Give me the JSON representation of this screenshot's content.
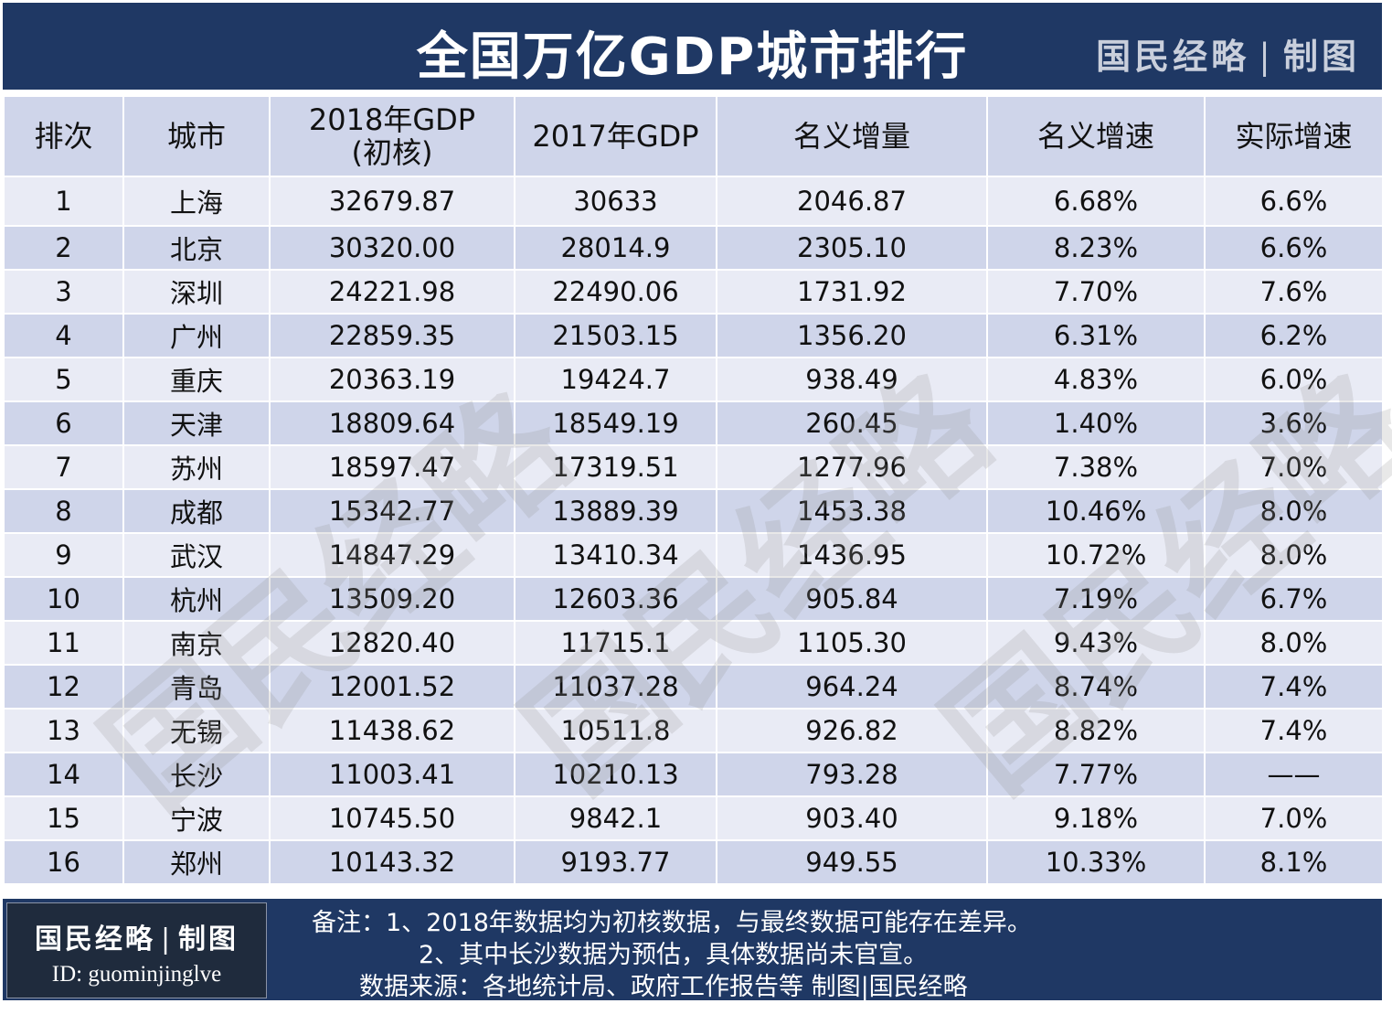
{
  "header": {
    "title": "全国万亿GDP城市排行",
    "brand": "国民经略",
    "brand_sep": "|",
    "brand_suffix": "制图"
  },
  "watermark_text": "国民经略",
  "chart_data": {
    "type": "table",
    "columns": [
      "排次",
      "城市",
      "2018年GDP\n(初核)",
      "2017年GDP",
      "名义增量",
      "名义增速",
      "实际增速"
    ],
    "rows": [
      [
        "1",
        "上海",
        "32679.87",
        "30633",
        "2046.87",
        "6.68%",
        "6.6%"
      ],
      [
        "2",
        "北京",
        "30320.00",
        "28014.9",
        "2305.10",
        "8.23%",
        "6.6%"
      ],
      [
        "3",
        "深圳",
        "24221.98",
        "22490.06",
        "1731.92",
        "7.70%",
        "7.6%"
      ],
      [
        "4",
        "广州",
        "22859.35",
        "21503.15",
        "1356.20",
        "6.31%",
        "6.2%"
      ],
      [
        "5",
        "重庆",
        "20363.19",
        "19424.7",
        "938.49",
        "4.83%",
        "6.0%"
      ],
      [
        "6",
        "天津",
        "18809.64",
        "18549.19",
        "260.45",
        "1.40%",
        "3.6%"
      ],
      [
        "7",
        "苏州",
        "18597.47",
        "17319.51",
        "1277.96",
        "7.38%",
        "7.0%"
      ],
      [
        "8",
        "成都",
        "15342.77",
        "13889.39",
        "1453.38",
        "10.46%",
        "8.0%"
      ],
      [
        "9",
        "武汉",
        "14847.29",
        "13410.34",
        "1436.95",
        "10.72%",
        "8.0%"
      ],
      [
        "10",
        "杭州",
        "13509.20",
        "12603.36",
        "905.84",
        "7.19%",
        "6.7%"
      ],
      [
        "11",
        "南京",
        "12820.40",
        "11715.1",
        "1105.30",
        "9.43%",
        "8.0%"
      ],
      [
        "12",
        "青岛",
        "12001.52",
        "11037.28",
        "964.24",
        "8.74%",
        "7.4%"
      ],
      [
        "13",
        "无锡",
        "11438.62",
        "10511.8",
        "926.82",
        "8.82%",
        "7.4%"
      ],
      [
        "14",
        "长沙",
        "11003.41",
        "10210.13",
        "793.28",
        "7.77%",
        "——"
      ],
      [
        "15",
        "宁波",
        "10745.50",
        "9842.1",
        "903.40",
        "9.18%",
        "7.0%"
      ],
      [
        "16",
        "郑州",
        "10143.32",
        "9193.77",
        "949.55",
        "10.33%",
        "8.1%"
      ]
    ]
  },
  "footer": {
    "logo_main": "国民经略",
    "logo_sep": "|",
    "logo_suffix": "制图",
    "logo_id": "ID: guominjinglve",
    "note_1": "备注：1、2018年数据均为初核数据，与最终数据可能存在差异。",
    "note_2": "2、其中长沙数据为预估，具体数据尚未官宣。",
    "note_3": "数据来源：各地统计局、政府工作报告等    制图|国民经略"
  },
  "colors": {
    "header_bg": "#1f3864",
    "row_light": "#e9ebf5",
    "row_dark": "#cfd5ea"
  }
}
